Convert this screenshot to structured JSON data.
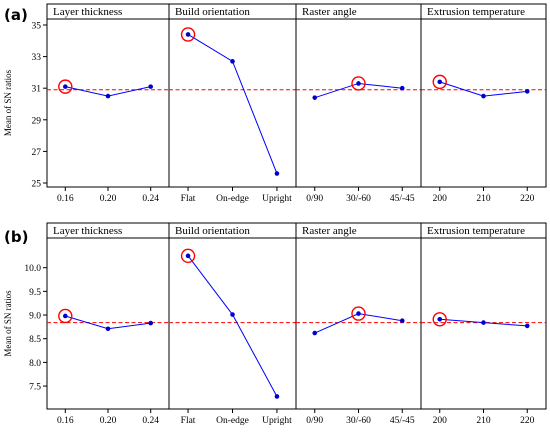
{
  "chart_data": [
    {
      "panel_label": "(a)",
      "type": "line",
      "ylabel": "Mean of SN ratios",
      "ylim": [
        25,
        35
      ],
      "yticks": [
        25,
        27,
        29,
        31,
        33,
        35
      ],
      "reference_line": 30.9,
      "reference_color": "#ff0000",
      "line_color": "#0000ff",
      "highlight_color": "#ff0000",
      "facets": [
        {
          "title": "Layer thickness",
          "categories": [
            "0.16",
            "0.20",
            "0.24"
          ],
          "values": [
            31.1,
            30.5,
            31.1
          ],
          "highlight_index": 0
        },
        {
          "title": "Build orientation",
          "categories": [
            "Flat",
            "On-edge",
            "Upright"
          ],
          "values": [
            34.4,
            32.7,
            25.6
          ],
          "highlight_index": 0
        },
        {
          "title": "Raster angle",
          "categories": [
            "0/90",
            "30/-60",
            "45/-45"
          ],
          "values": [
            30.4,
            31.3,
            31.0
          ],
          "highlight_index": 1
        },
        {
          "title": "Extrusion temperature",
          "categories": [
            "200",
            "210",
            "220"
          ],
          "values": [
            31.4,
            30.5,
            30.8
          ],
          "highlight_index": 0
        }
      ]
    },
    {
      "panel_label": "(b)",
      "type": "line",
      "ylabel": "Mean of SN ratios",
      "ylim": [
        7.1,
        10.5
      ],
      "yticks": [
        "7.5",
        "8.0",
        "8.5",
        "9.0",
        "9.5",
        "10.0"
      ],
      "reference_line": 8.84,
      "reference_color": "#ff0000",
      "line_color": "#0000ff",
      "highlight_color": "#ff0000",
      "facets": [
        {
          "title": "Layer thickness",
          "categories": [
            "0.16",
            "0.20",
            "0.24"
          ],
          "values": [
            8.98,
            8.71,
            8.83
          ],
          "highlight_index": 0
        },
        {
          "title": "Build orientation",
          "categories": [
            "Flat",
            "On-edge",
            "Upright"
          ],
          "values": [
            10.25,
            9.01,
            7.28
          ],
          "highlight_index": 0
        },
        {
          "title": "Raster angle",
          "categories": [
            "0/90",
            "30/-60",
            "45/-45"
          ],
          "values": [
            8.62,
            9.03,
            8.88
          ],
          "highlight_index": 1
        },
        {
          "title": "Extrusion temperature",
          "categories": [
            "200",
            "210",
            "220"
          ],
          "values": [
            8.91,
            8.84,
            8.77
          ],
          "highlight_index": 0
        }
      ]
    }
  ]
}
